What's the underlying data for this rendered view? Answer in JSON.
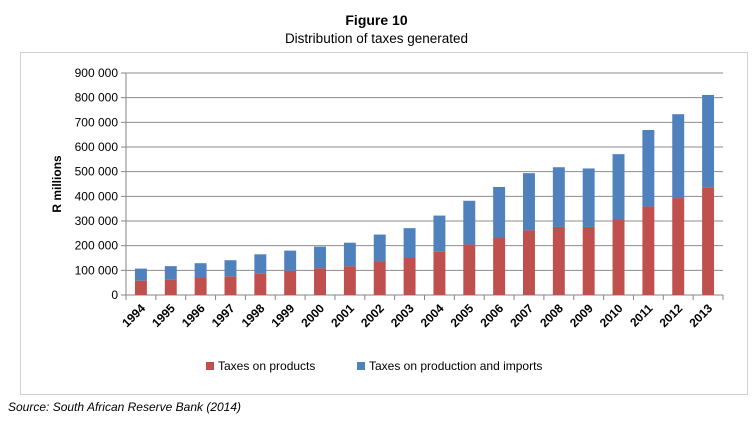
{
  "chart_data": {
    "type": "bar",
    "stacked": true,
    "title": "Figure 10",
    "subtitle": "Distribution of taxes generated",
    "xlabel": "",
    "ylabel": "R millions",
    "ylim": [
      0,
      900000
    ],
    "yticks": [
      "0",
      "100 000",
      "200 000",
      "300 000",
      "400 000",
      "500 000",
      "600 000",
      "700 000",
      "800 000",
      "900 000"
    ],
    "grid": true,
    "legend_position": "bottom",
    "categories": [
      "1994",
      "1995",
      "1996",
      "1997",
      "1998",
      "1999",
      "2000",
      "2001",
      "2002",
      "2003",
      "2004",
      "2005",
      "2006",
      "2007",
      "2008",
      "2009",
      "2010",
      "2011",
      "2012",
      "2013"
    ],
    "series": [
      {
        "name": "Taxes on products",
        "color": "#c0504d",
        "values": [
          58000,
          64000,
          69000,
          76000,
          88000,
          98000,
          109000,
          117000,
          136000,
          150000,
          175000,
          205000,
          233000,
          263000,
          276000,
          276000,
          306000,
          359000,
          393000,
          437000
        ]
      },
      {
        "name": "Taxes on production and imports",
        "color": "#4f81bd",
        "values": [
          49000,
          53000,
          60000,
          65000,
          77000,
          82000,
          87000,
          95000,
          109000,
          121000,
          147000,
          177000,
          205000,
          231000,
          242000,
          237000,
          265000,
          310000,
          340000,
          374000
        ]
      }
    ],
    "source": "Source: South African Reserve Bank (2014)"
  }
}
